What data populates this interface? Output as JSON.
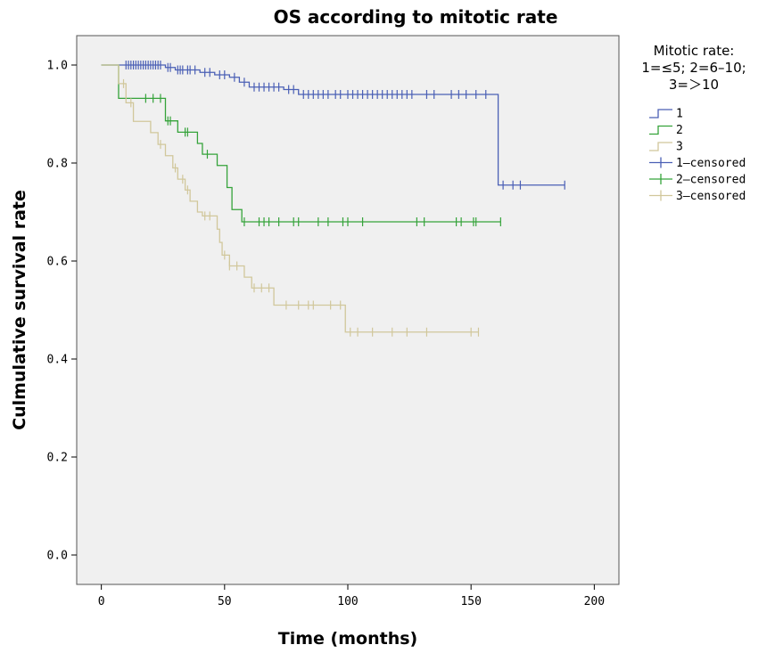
{
  "chart_data": {
    "type": "line",
    "title": "OS according to mitotic rate",
    "xlabel": "Time (months)",
    "ylabel": "Culmulative survival rate",
    "xlim": [
      -10,
      210
    ],
    "ylim": [
      -0.06,
      1.06
    ],
    "xticks": [
      0,
      50,
      100,
      150,
      200
    ],
    "yticks": [
      0.0,
      0.2,
      0.4,
      0.6,
      0.8,
      1.0
    ],
    "xtick_labels": [
      "0",
      "50",
      "100",
      "150",
      "200"
    ],
    "ytick_labels": [
      "0.0",
      "0.2",
      "0.4",
      "0.6",
      "0.8",
      "1.0"
    ],
    "grid": false,
    "legend": {
      "placement": "right",
      "title_lines": [
        "Mitotic rate:",
        "1=≤5;  2=6–10;",
        "3=＞10"
      ],
      "entries": [
        "1",
        "2",
        "3",
        "1–censored",
        "2–censored",
        "3–censored"
      ]
    },
    "series": [
      {
        "name": "1",
        "color": "#4a5fb5",
        "steps": [
          [
            0,
            1.0
          ],
          [
            26,
            0.995
          ],
          [
            30,
            0.99
          ],
          [
            40,
            0.985
          ],
          [
            46,
            0.98
          ],
          [
            52,
            0.975
          ],
          [
            56,
            0.965
          ],
          [
            60,
            0.955
          ],
          [
            74,
            0.95
          ],
          [
            80,
            0.94
          ],
          [
            161,
            0.755
          ],
          [
            188,
            0.755
          ]
        ],
        "censored": [
          [
            10,
            1.0
          ],
          [
            11,
            1.0
          ],
          [
            12,
            1.0
          ],
          [
            13,
            1.0
          ],
          [
            14,
            1.0
          ],
          [
            15,
            1.0
          ],
          [
            16,
            1.0
          ],
          [
            17,
            1.0
          ],
          [
            18,
            1.0
          ],
          [
            19,
            1.0
          ],
          [
            20,
            1.0
          ],
          [
            21,
            1.0
          ],
          [
            22,
            1.0
          ],
          [
            23,
            1.0
          ],
          [
            24,
            1.0
          ],
          [
            27,
            0.995
          ],
          [
            28,
            0.995
          ],
          [
            31,
            0.99
          ],
          [
            32,
            0.99
          ],
          [
            33,
            0.99
          ],
          [
            35,
            0.99
          ],
          [
            36,
            0.99
          ],
          [
            38,
            0.99
          ],
          [
            42,
            0.985
          ],
          [
            44,
            0.985
          ],
          [
            48,
            0.98
          ],
          [
            50,
            0.98
          ],
          [
            54,
            0.975
          ],
          [
            58,
            0.965
          ],
          [
            62,
            0.955
          ],
          [
            64,
            0.955
          ],
          [
            66,
            0.955
          ],
          [
            68,
            0.955
          ],
          [
            70,
            0.955
          ],
          [
            72,
            0.955
          ],
          [
            76,
            0.95
          ],
          [
            78,
            0.95
          ],
          [
            82,
            0.94
          ],
          [
            84,
            0.94
          ],
          [
            86,
            0.94
          ],
          [
            88,
            0.94
          ],
          [
            90,
            0.94
          ],
          [
            92,
            0.94
          ],
          [
            95,
            0.94
          ],
          [
            97,
            0.94
          ],
          [
            100,
            0.94
          ],
          [
            102,
            0.94
          ],
          [
            104,
            0.94
          ],
          [
            106,
            0.94
          ],
          [
            108,
            0.94
          ],
          [
            110,
            0.94
          ],
          [
            112,
            0.94
          ],
          [
            114,
            0.94
          ],
          [
            116,
            0.94
          ],
          [
            118,
            0.94
          ],
          [
            120,
            0.94
          ],
          [
            122,
            0.94
          ],
          [
            124,
            0.94
          ],
          [
            126,
            0.94
          ],
          [
            132,
            0.94
          ],
          [
            135,
            0.94
          ],
          [
            142,
            0.94
          ],
          [
            145,
            0.94
          ],
          [
            148,
            0.94
          ],
          [
            152,
            0.94
          ],
          [
            156,
            0.94
          ],
          [
            163,
            0.755
          ],
          [
            167,
            0.755
          ],
          [
            170,
            0.755
          ],
          [
            188,
            0.755
          ]
        ]
      },
      {
        "name": "2",
        "color": "#35a33a",
        "steps": [
          [
            0,
            1.0
          ],
          [
            7,
            0.932
          ],
          [
            26,
            0.886
          ],
          [
            31,
            0.863
          ],
          [
            39,
            0.84
          ],
          [
            41,
            0.818
          ],
          [
            47,
            0.795
          ],
          [
            51,
            0.75
          ],
          [
            53,
            0.705
          ],
          [
            57,
            0.68
          ],
          [
            162,
            0.68
          ]
        ],
        "censored": [
          [
            18,
            0.932
          ],
          [
            21,
            0.932
          ],
          [
            24,
            0.932
          ],
          [
            27,
            0.886
          ],
          [
            28,
            0.886
          ],
          [
            34,
            0.863
          ],
          [
            35,
            0.863
          ],
          [
            43,
            0.818
          ],
          [
            58,
            0.68
          ],
          [
            64,
            0.68
          ],
          [
            66,
            0.68
          ],
          [
            68,
            0.68
          ],
          [
            72,
            0.68
          ],
          [
            78,
            0.68
          ],
          [
            80,
            0.68
          ],
          [
            88,
            0.68
          ],
          [
            92,
            0.68
          ],
          [
            98,
            0.68
          ],
          [
            100,
            0.68
          ],
          [
            106,
            0.68
          ],
          [
            128,
            0.68
          ],
          [
            131,
            0.68
          ],
          [
            144,
            0.68
          ],
          [
            146,
            0.68
          ],
          [
            151,
            0.68
          ],
          [
            152,
            0.68
          ],
          [
            162,
            0.68
          ]
        ]
      },
      {
        "name": "3",
        "color": "#d1c79b",
        "steps": [
          [
            0,
            1.0
          ],
          [
            7,
            0.962
          ],
          [
            10,
            0.923
          ],
          [
            13,
            0.885
          ],
          [
            20,
            0.862
          ],
          [
            23,
            0.838
          ],
          [
            26,
            0.815
          ],
          [
            29,
            0.79
          ],
          [
            31,
            0.767
          ],
          [
            34,
            0.745
          ],
          [
            36,
            0.722
          ],
          [
            39,
            0.7
          ],
          [
            41,
            0.692
          ],
          [
            47,
            0.665
          ],
          [
            48,
            0.638
          ],
          [
            49,
            0.612
          ],
          [
            52,
            0.59
          ],
          [
            58,
            0.567
          ],
          [
            61,
            0.545
          ],
          [
            70,
            0.51
          ],
          [
            99,
            0.455
          ],
          [
            153,
            0.455
          ]
        ],
        "censored": [
          [
            9,
            0.962
          ],
          [
            12,
            0.923
          ],
          [
            24,
            0.838
          ],
          [
            30,
            0.79
          ],
          [
            33,
            0.767
          ],
          [
            35,
            0.745
          ],
          [
            42,
            0.692
          ],
          [
            44,
            0.692
          ],
          [
            50,
            0.612
          ],
          [
            52,
            0.59
          ],
          [
            55,
            0.59
          ],
          [
            62,
            0.545
          ],
          [
            65,
            0.545
          ],
          [
            68,
            0.545
          ],
          [
            75,
            0.51
          ],
          [
            80,
            0.51
          ],
          [
            84,
            0.51
          ],
          [
            86,
            0.51
          ],
          [
            93,
            0.51
          ],
          [
            97,
            0.51
          ],
          [
            101,
            0.455
          ],
          [
            104,
            0.455
          ],
          [
            110,
            0.455
          ],
          [
            118,
            0.455
          ],
          [
            124,
            0.455
          ],
          [
            132,
            0.455
          ],
          [
            150,
            0.455
          ],
          [
            153,
            0.455
          ]
        ]
      }
    ]
  }
}
